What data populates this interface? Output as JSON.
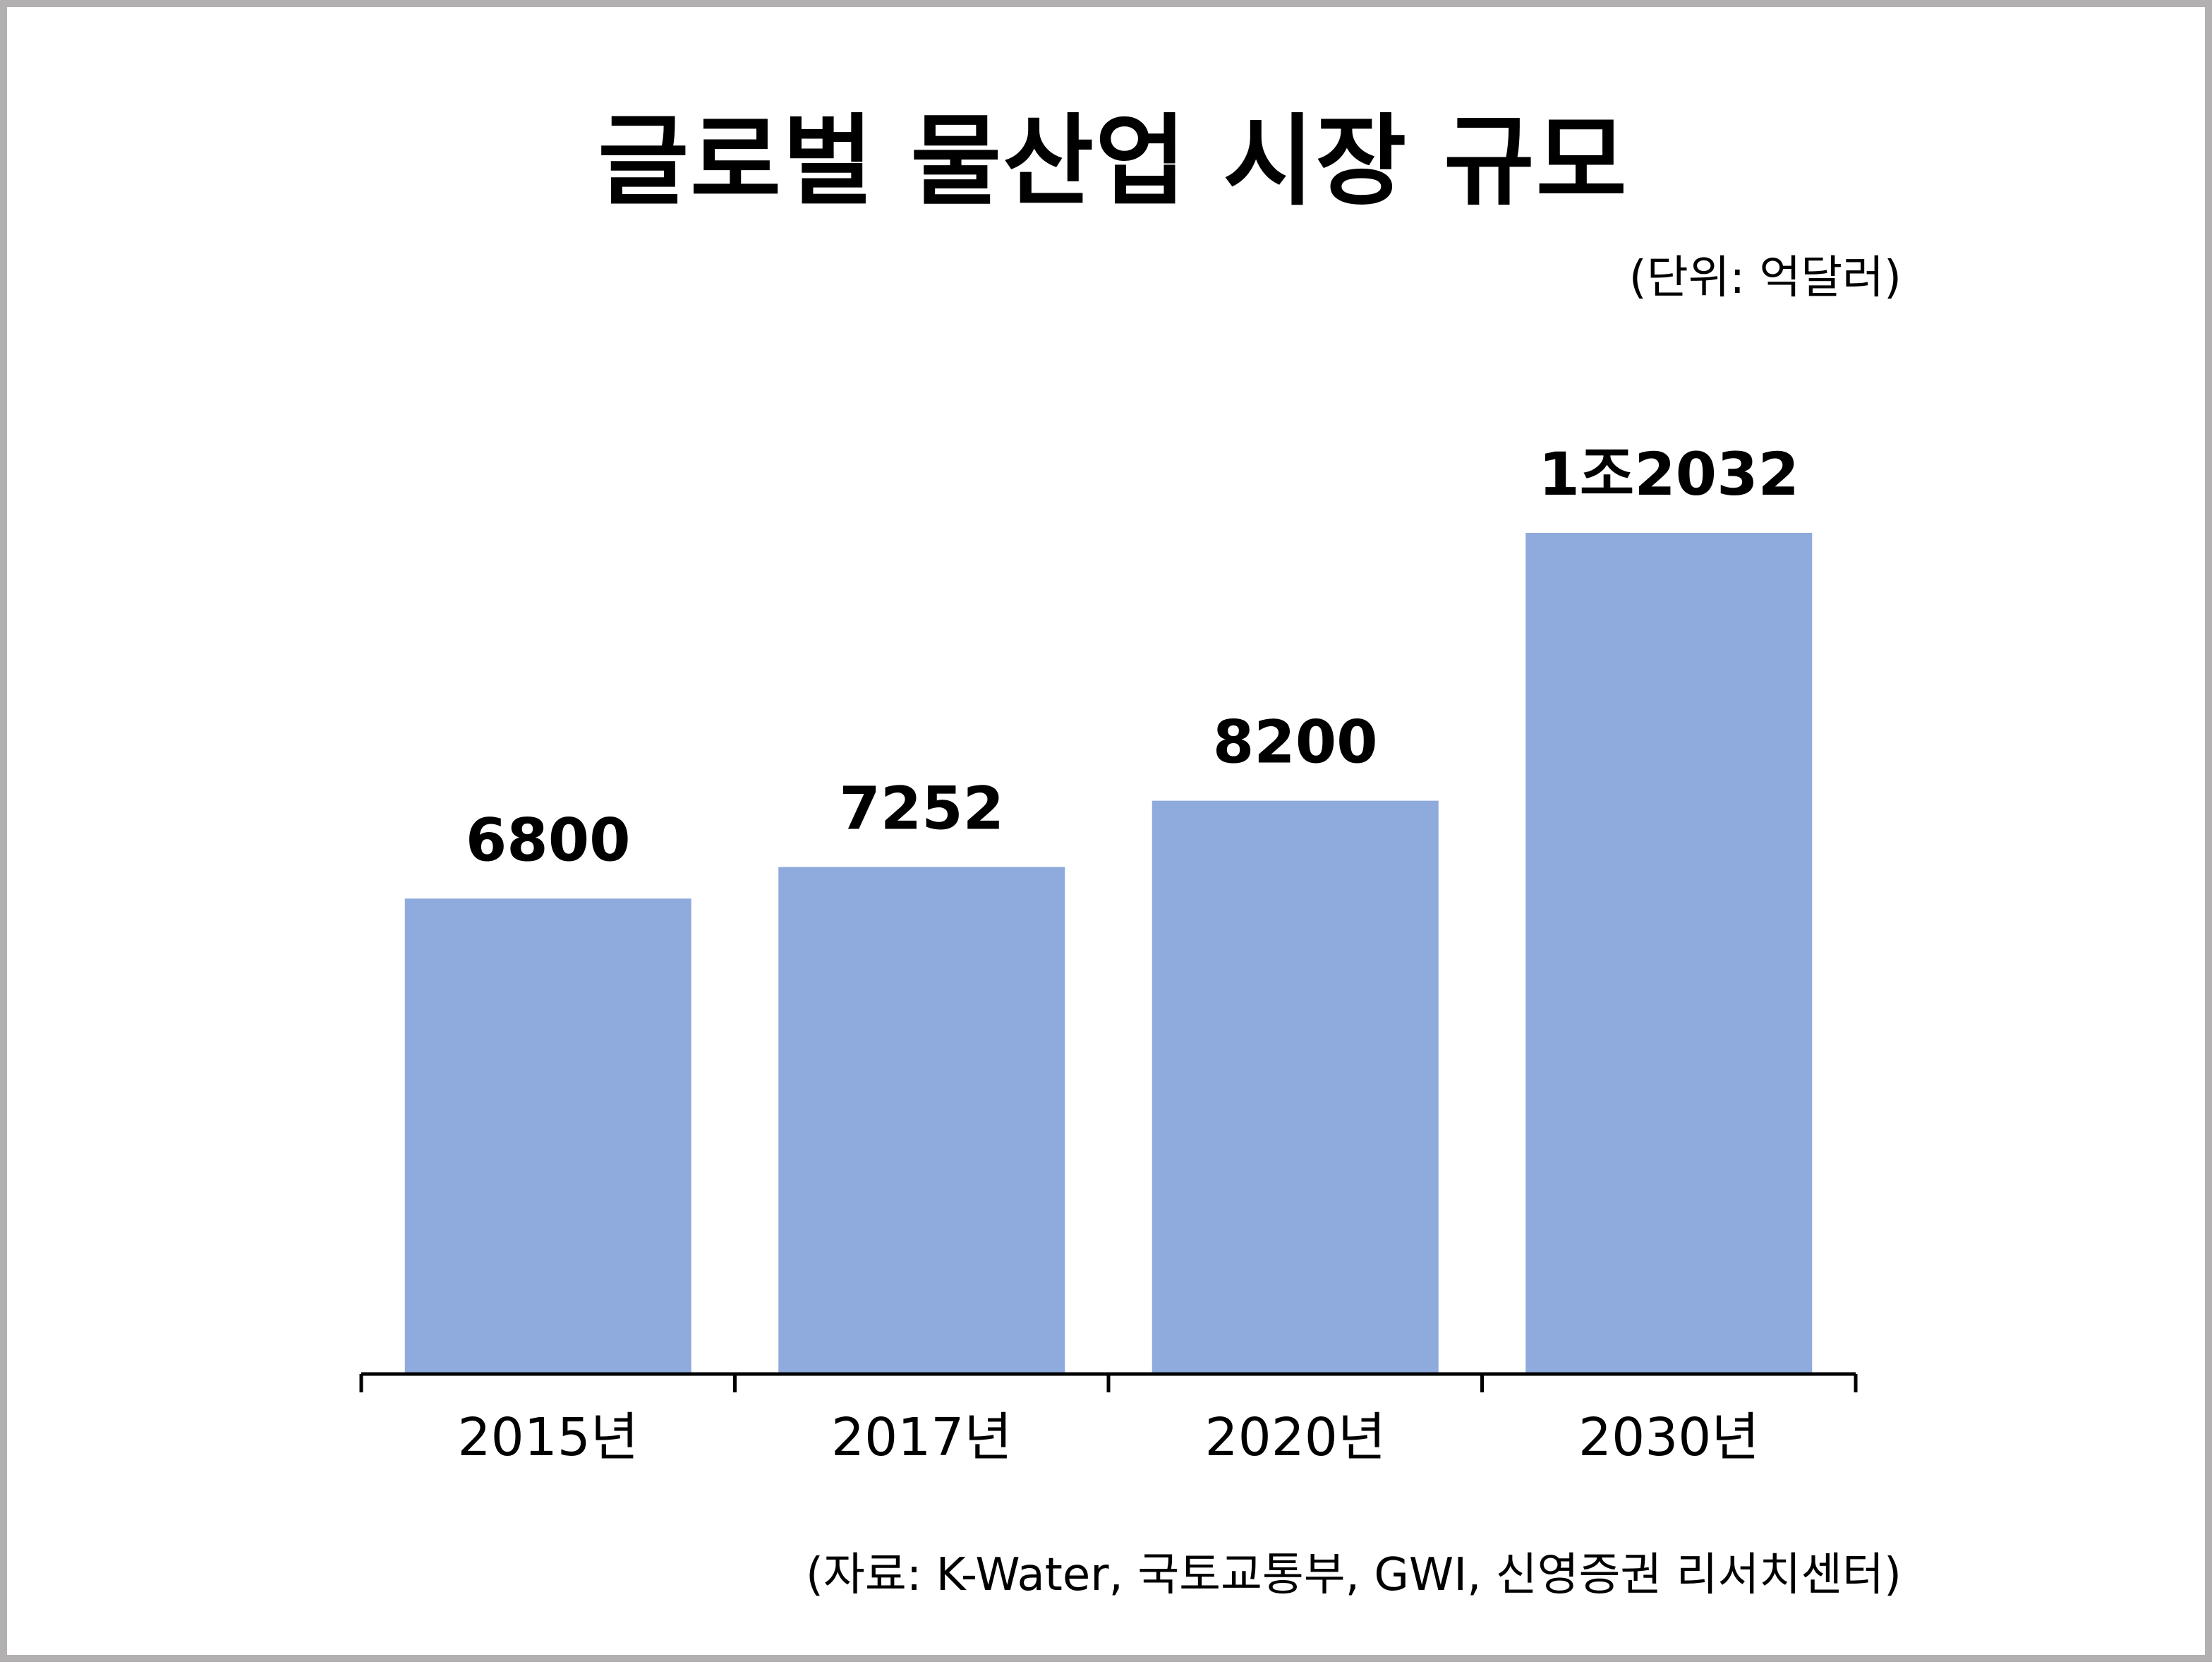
{
  "chart_data": {
    "type": "bar",
    "title": "글로벌 물산업 시장 규모",
    "unit": "(단위: 억달러)",
    "source": "(자료: K-Water, 국토교통부, GWI, 신영증권 리서치센터)",
    "categories": [
      "2015년",
      "2017년",
      "2020년",
      "2030년"
    ],
    "values": [
      6800,
      7252,
      8200,
      12032
    ],
    "value_labels": [
      "6800",
      "7252",
      "8200",
      "1조2032"
    ],
    "ylim": [
      0,
      12032
    ],
    "bar_color": "#8faadc",
    "axis_color": "#000000",
    "grid": false,
    "legend": "none"
  }
}
